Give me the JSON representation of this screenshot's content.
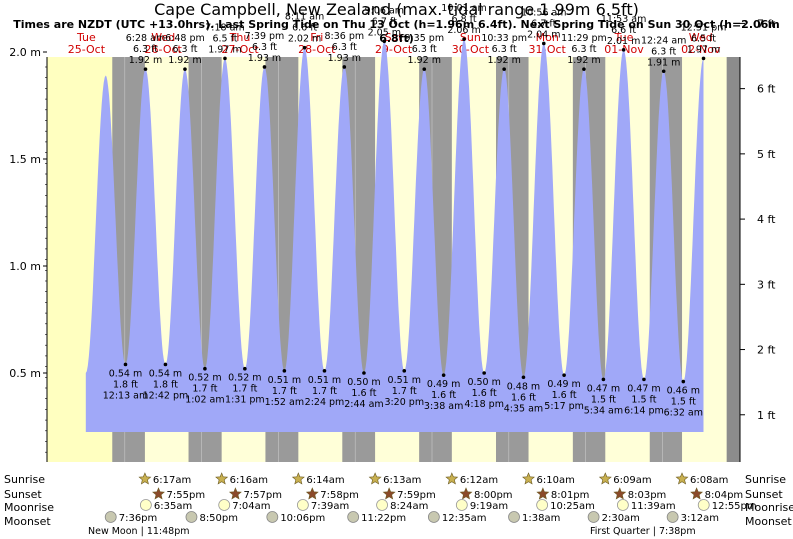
{
  "title": "Cape Campbell, New Zealand (max. tidal range 1.99m 6.5ft)",
  "subtitle": "Times are NZDT (UTC +13.0hrs). Last Spring Tide on Thu 13 Oct (h=1.96m 6.4ft). Next Spring Tide on Sun 30 Oct (h=2.06m 6.8ft)",
  "colors": {
    "day": "#ffffc0",
    "night": "#9a9a9a",
    "tide": "#a0a8f8",
    "outside": "#ffffd8",
    "dayLabel": "#d00000"
  },
  "chart_data": {
    "type": "area",
    "title": "Cape Campbell, New Zealand (max. tidal range 1.99m 6.5ft)",
    "ylabel_left": "",
    "ylabel_right": "",
    "yticks_m": [
      "0.5 m",
      "1.0 m",
      "1.5 m",
      "2.0 m"
    ],
    "yticks_ft": [
      "1 ft",
      "2 ft",
      "3 ft",
      "4 ft",
      "5 ft",
      "6 ft",
      "7 ft"
    ],
    "days": [
      {
        "dow": "Tue",
        "date": "25-Oct"
      },
      {
        "dow": "Wed",
        "date": "26-Oct"
      },
      {
        "dow": "Thu",
        "date": "27-Oct"
      },
      {
        "dow": "Fri",
        "date": "28-Oct"
      },
      {
        "dow": "Sat",
        "date": "29-Oct"
      },
      {
        "dow": "Sun",
        "date": "30-Oct"
      },
      {
        "dow": "Mon",
        "date": "31-Oct"
      },
      {
        "dow": "Tue",
        "date": "01-Nov"
      },
      {
        "dow": "Wed",
        "date": "02-Nov"
      }
    ],
    "start_day_offset_h": 0,
    "tides": [
      {
        "t": "24:13",
        "h": 0.54,
        "m": "0.54 m",
        "ft": "1.8 ft",
        "time": "12:13 am",
        "type": "low"
      },
      {
        "t": "30:28",
        "h": 1.92,
        "m": "1.92 m",
        "ft": "6.3 ft",
        "time": "6:28 am",
        "type": "high"
      },
      {
        "t": "36:42",
        "h": 0.54,
        "m": "0.54 m",
        "ft": "1.8 ft",
        "time": "12:42 pm",
        "type": "low"
      },
      {
        "t": "42:48",
        "h": 1.92,
        "m": "1.92 m",
        "ft": "6.3 ft",
        "time": "6:48 pm",
        "type": "high"
      },
      {
        "t": "49:02",
        "h": 0.52,
        "m": "0.52 m",
        "ft": "1.7 ft",
        "time": "1:02 am",
        "type": "low"
      },
      {
        "t": "55:18",
        "h": 1.97,
        "m": "1.97 m",
        "ft": "6.5 ft",
        "time": "7:18 am",
        "type": "high"
      },
      {
        "t": "61:31",
        "h": 0.52,
        "m": "0.52 m",
        "ft": "1.7 ft",
        "time": "1:31 pm",
        "type": "low"
      },
      {
        "t": "67:39",
        "h": 1.93,
        "m": "1.93 m",
        "ft": "6.3 ft",
        "time": "7:39 pm",
        "type": "high"
      },
      {
        "t": "73:52",
        "h": 0.51,
        "m": "0.51 m",
        "ft": "1.7 ft",
        "time": "1:52 am",
        "type": "low"
      },
      {
        "t": "80:11",
        "h": 2.02,
        "m": "2.02 m",
        "ft": "6.6 ft",
        "time": "8:11 am",
        "type": "high"
      },
      {
        "t": "86:24",
        "h": 0.51,
        "m": "0.51 m",
        "ft": "1.7 ft",
        "time": "2:24 pm",
        "type": "low"
      },
      {
        "t": "92:36",
        "h": 1.93,
        "m": "1.93 m",
        "ft": "6.3 ft",
        "time": "8:36 pm",
        "type": "high"
      },
      {
        "t": "98:44",
        "h": 0.5,
        "m": "0.50 m",
        "ft": "1.6 ft",
        "time": "2:44 am",
        "type": "low"
      },
      {
        "t": "105:06",
        "h": 2.05,
        "m": "2.05 m",
        "ft": "6.7 ft",
        "time": "9:06 am",
        "type": "high"
      },
      {
        "t": "111:20",
        "h": 0.51,
        "m": "0.51 m",
        "ft": "1.7 ft",
        "time": "3:20 pm",
        "type": "low"
      },
      {
        "t": "117:35",
        "h": 1.92,
        "m": "1.92 m",
        "ft": "6.3 ft",
        "time": "9:35 pm",
        "type": "high"
      },
      {
        "t": "123:38",
        "h": 0.49,
        "m": "0.49 m",
        "ft": "1.6 ft",
        "time": "3:38 am",
        "type": "low"
      },
      {
        "t": "130:01",
        "h": 2.06,
        "m": "2.06 m",
        "ft": "6.8 ft",
        "time": "10:01 am",
        "type": "high"
      },
      {
        "t": "136:18",
        "h": 0.5,
        "m": "0.50 m",
        "ft": "1.6 ft",
        "time": "4:18 pm",
        "type": "low"
      },
      {
        "t": "142:33",
        "h": 1.92,
        "m": "1.92 m",
        "ft": "6.3 ft",
        "time": "10:33 pm",
        "type": "high"
      },
      {
        "t": "148:35",
        "h": 0.48,
        "m": "0.48 m",
        "ft": "1.6 ft",
        "time": "4:35 am",
        "type": "low"
      },
      {
        "t": "154:56",
        "h": 2.04,
        "m": "2.04 m",
        "ft": "6.7 ft",
        "time": "10:56 am",
        "type": "high"
      },
      {
        "t": "161:17",
        "h": 0.49,
        "m": "0.49 m",
        "ft": "1.6 ft",
        "time": "5:17 pm",
        "type": "low"
      },
      {
        "t": "167:29",
        "h": 1.92,
        "m": "1.92 m",
        "ft": "6.3 ft",
        "time": "11:29 pm",
        "type": "high"
      },
      {
        "t": "173:34",
        "h": 0.47,
        "m": "0.47 m",
        "ft": "1.5 ft",
        "time": "5:34 am",
        "type": "low"
      },
      {
        "t": "179:53",
        "h": 2.01,
        "m": "2.01 m",
        "ft": "6.6 ft",
        "time": "11:53 am",
        "type": "high"
      },
      {
        "t": "186:14",
        "h": 0.47,
        "m": "0.47 m",
        "ft": "1.5 ft",
        "time": "6:14 pm",
        "type": "low"
      },
      {
        "t": "192:24",
        "h": 1.91,
        "m": "1.91 m",
        "ft": "6.3 ft",
        "time": "12:24 am",
        "type": "high"
      },
      {
        "t": "198:32",
        "h": 0.46,
        "m": "0.46 m",
        "ft": "1.5 ft",
        "time": "6:32 am",
        "type": "low"
      },
      {
        "t": "204:51",
        "h": 1.97,
        "m": "1.97 m",
        "ft": "6.5 ft",
        "time": "12:51 pm",
        "type": "high"
      }
    ],
    "sun": [
      {
        "sunrise": "6:17am",
        "sunset": "7:55pm"
      },
      {
        "sunrise": "6:16am",
        "sunset": "7:57pm"
      },
      {
        "sunrise": "6:14am",
        "sunset": "7:58pm"
      },
      {
        "sunrise": "6:13am",
        "sunset": "7:59pm"
      },
      {
        "sunrise": "6:12am",
        "sunset": "8:00pm"
      },
      {
        "sunrise": "6:10am",
        "sunset": "8:01pm"
      },
      {
        "sunrise": "6:09am",
        "sunset": "8:03pm"
      },
      {
        "sunrise": "6:08am",
        "sunset": "8:04pm"
      }
    ],
    "moonrise": [
      "6:35am",
      "7:04am",
      "7:39am",
      "8:24am",
      "9:19am",
      "10:25am",
      "11:39am",
      "12:55pm"
    ],
    "moonset": [
      "7:36pm",
      "8:50pm",
      "10:06pm",
      "11:22pm",
      "12:35am",
      "1:38am",
      "2:30am",
      "3:12am"
    ],
    "row_labels": {
      "sunrise": "Sunrise",
      "sunset": "Sunset",
      "moonrise": "Moonrise",
      "moonset": "Moonset"
    },
    "moon_phases": [
      {
        "label": "New Moon | 11:48pm"
      },
      {
        "label": "First Quarter | 7:38pm"
      }
    ]
  }
}
